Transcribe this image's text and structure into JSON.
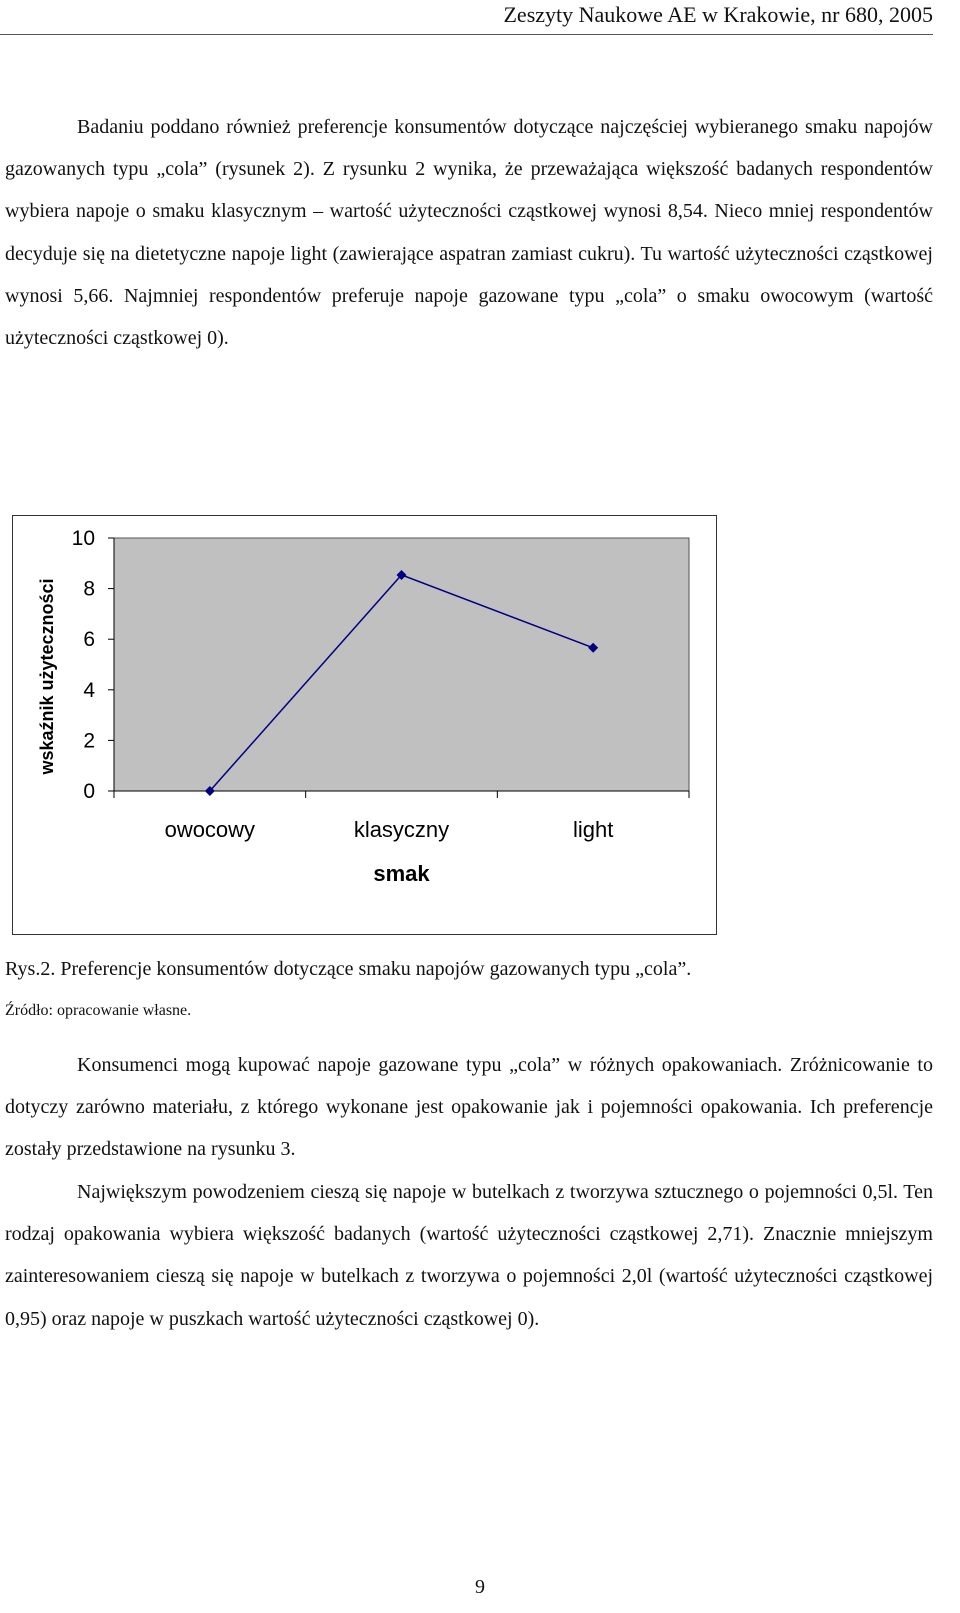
{
  "header": {
    "running_title": "Zeszyty Naukowe AE w Krakowie, nr 680, 2005"
  },
  "paragraphs": {
    "p1": "Badaniu poddano również preferencje konsumentów dotyczące najczęściej wybieranego smaku napojów gazowanych typu „cola” (rysunek 2). Z rysunku 2 wynika, że przeważająca większość badanych respondentów wybiera napoje o smaku klasycznym – wartość użyteczności cząstkowej wynosi 8,54. Nieco mniej respondentów decyduje się na dietetyczne napoje light (zawierające aspatran zamiast cukru). Tu wartość użyteczności cząstkowej wynosi 5,66. Najmniej respondentów preferuje napoje gazowane typu „cola” o smaku owocowym (wartość użyteczności cząstkowej 0).",
    "p2": "Konsumenci mogą kupować napoje gazowane typu „cola” w różnych opakowaniach. Zróżnicowanie to dotyczy zarówno materiału, z którego wykonane jest opakowanie jak i pojemności opakowania. Ich preferencje zostały przedstawione na rysunku 3.",
    "p3": "Największym powodzeniem cieszą się napoje w butelkach z tworzywa sztucznego o pojemności 0,5l. Ten rodzaj opakowania wybiera większość badanych (wartość użyteczności cząstkowej 2,71). Znacznie mniejszym zainteresowaniem cieszą się napoje w butelkach z tworzywa o pojemności 2,0l (wartość użyteczności cząstkowej 0,95) oraz napoje w puszkach wartość użyteczności cząstkowej 0)."
  },
  "figure": {
    "caption": "Rys.2. Preferencje konsumentów dotyczące smaku napojów gazowanych typu „cola”.",
    "source": "Źródło: opracowanie własne."
  },
  "chart_data": {
    "type": "line",
    "categories": [
      "owocowy",
      "klasyczny",
      "light"
    ],
    "series": [
      {
        "values": [
          0,
          8.54,
          5.66
        ]
      }
    ],
    "xlabel": "smak",
    "ylabel": "wskaźnik użyteczności",
    "ylim": [
      0,
      10
    ],
    "yticks": [
      "0",
      "2",
      "4",
      "6",
      "8",
      "10"
    ],
    "grid": false,
    "plot_background": "#c0c0c0",
    "line_color": "#000080"
  },
  "page": {
    "number": "9"
  }
}
